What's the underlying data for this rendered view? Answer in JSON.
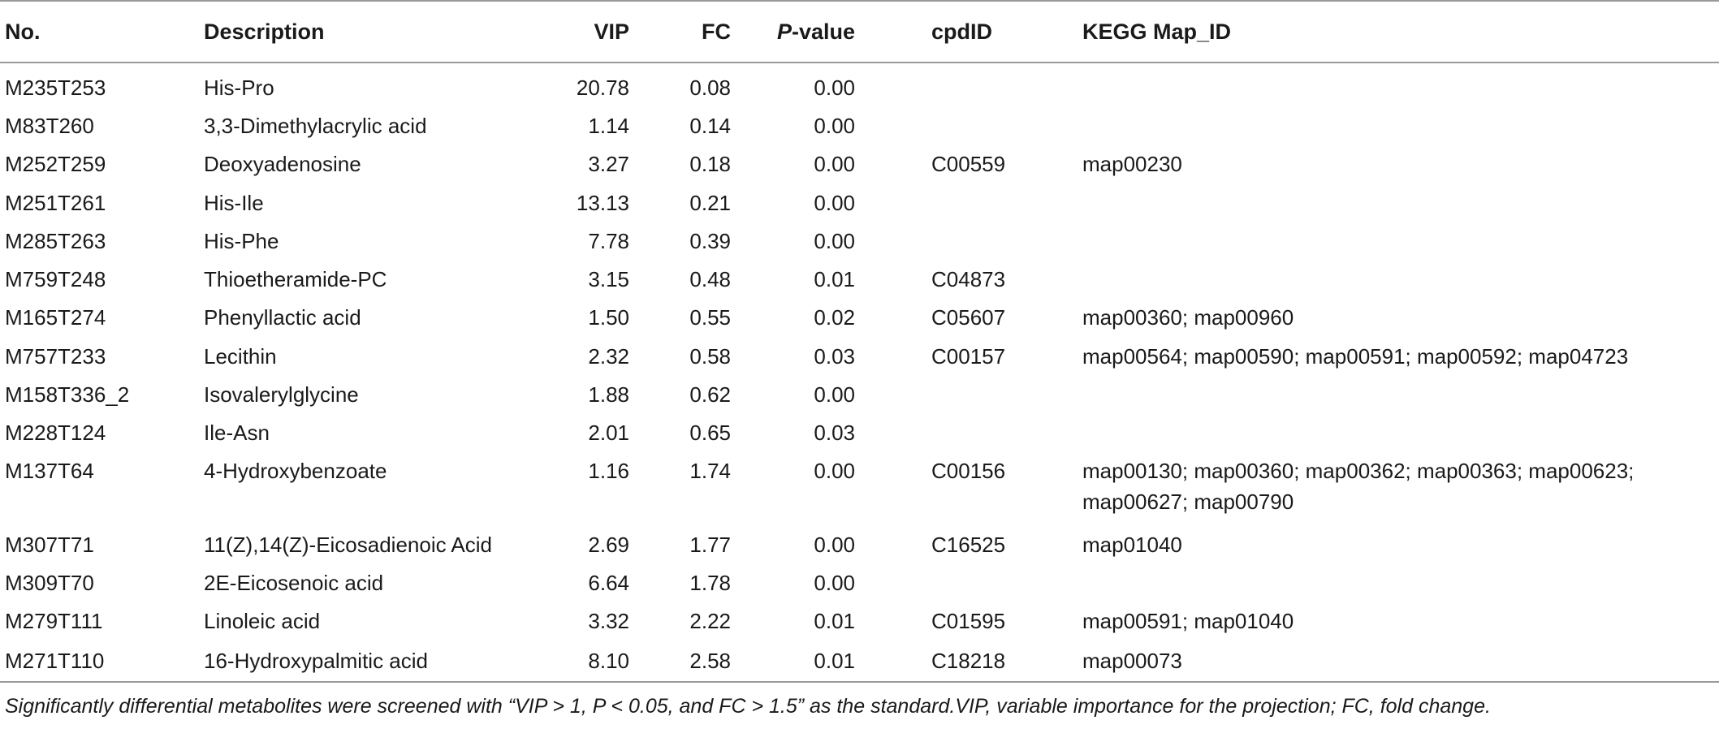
{
  "table": {
    "headers": {
      "no": "No.",
      "description": "Description",
      "vip": "VIP",
      "fc": "FC",
      "p_prefix": "P",
      "p_suffix": "-value",
      "cpdid": "cpdID",
      "kegg": "KEGG Map_ID"
    },
    "rows": [
      {
        "no": "M235T253",
        "description": "His-Pro",
        "vip": "20.78",
        "fc": "0.08",
        "p": "0.00",
        "cpdid": "",
        "kegg": ""
      },
      {
        "no": "M83T260",
        "description": "3,3-Dimethylacrylic acid",
        "vip": "1.14",
        "fc": "0.14",
        "p": "0.00",
        "cpdid": "",
        "kegg": ""
      },
      {
        "no": "M252T259",
        "description": "Deoxyadenosine",
        "vip": "3.27",
        "fc": "0.18",
        "p": "0.00",
        "cpdid": "C00559",
        "kegg": "map00230"
      },
      {
        "no": "M251T261",
        "description": "His-Ile",
        "vip": "13.13",
        "fc": "0.21",
        "p": "0.00",
        "cpdid": "",
        "kegg": ""
      },
      {
        "no": "M285T263",
        "description": "His-Phe",
        "vip": "7.78",
        "fc": "0.39",
        "p": "0.00",
        "cpdid": "",
        "kegg": ""
      },
      {
        "no": "M759T248",
        "description": "Thioetheramide-PC",
        "vip": "3.15",
        "fc": "0.48",
        "p": "0.01",
        "cpdid": "C04873",
        "kegg": ""
      },
      {
        "no": "M165T274",
        "description": "Phenyllactic acid",
        "vip": "1.50",
        "fc": "0.55",
        "p": "0.02",
        "cpdid": "C05607",
        "kegg": "map00360; map00960"
      },
      {
        "no": "M757T233",
        "description": "Lecithin",
        "vip": "2.32",
        "fc": "0.58",
        "p": "0.03",
        "cpdid": "C00157",
        "kegg": "map00564; map00590; map00591; map00592; map04723"
      },
      {
        "no": "M158T336_2",
        "description": "Isovalerylglycine",
        "vip": "1.88",
        "fc": "0.62",
        "p": "0.00",
        "cpdid": "",
        "kegg": ""
      },
      {
        "no": "M228T124",
        "description": "Ile-Asn",
        "vip": "2.01",
        "fc": "0.65",
        "p": "0.03",
        "cpdid": "",
        "kegg": ""
      },
      {
        "no": "M137T64",
        "description": "4-Hydroxybenzoate",
        "vip": "1.16",
        "fc": "1.74",
        "p": "0.00",
        "cpdid": "C00156",
        "kegg": "map00130; map00360; map00362; map00363; map00623;",
        "kegg2": "map00627; map00790"
      },
      {
        "no": "M307T71",
        "description": "11(Z),14(Z)-Eicosadienoic Acid",
        "vip": "2.69",
        "fc": "1.77",
        "p": "0.00",
        "cpdid": "C16525",
        "kegg": "map01040"
      },
      {
        "no": "M309T70",
        "description": "2E-Eicosenoic acid",
        "vip": "6.64",
        "fc": "1.78",
        "p": "0.00",
        "cpdid": "",
        "kegg": ""
      },
      {
        "no": "M279T111",
        "description": "Linoleic acid",
        "vip": "3.32",
        "fc": "2.22",
        "p": "0.01",
        "cpdid": "C01595",
        "kegg": "map00591; map01040"
      },
      {
        "no": "M271T110",
        "description": "16-Hydroxypalmitic acid",
        "vip": "8.10",
        "fc": "2.58",
        "p": "0.01",
        "cpdid": "C18218",
        "kegg": "map00073"
      }
    ]
  },
  "footnote": "Significantly differential metabolites were screened with “VIP > 1, P < 0.05, and FC > 1.5” as the standard.VIP, variable importance for the projection; FC, fold change."
}
